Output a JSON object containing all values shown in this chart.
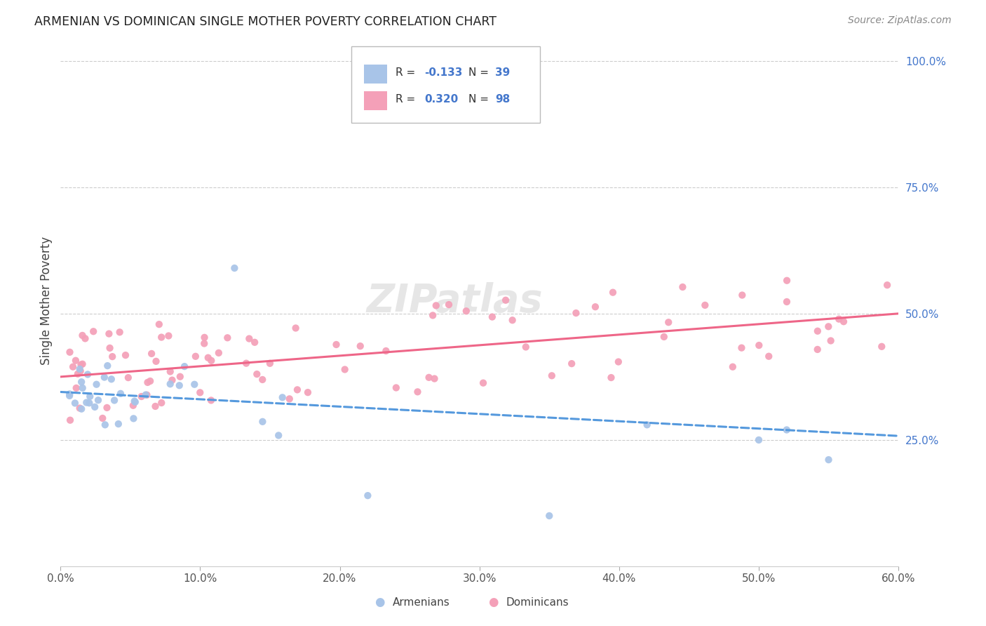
{
  "title": "ARMENIAN VS DOMINICAN SINGLE MOTHER POVERTY CORRELATION CHART",
  "source": "Source: ZipAtlas.com",
  "ylabel": "Single Mother Poverty",
  "armenian_R": -0.133,
  "armenian_N": 39,
  "dominican_R": 0.32,
  "dominican_N": 98,
  "armenian_color": "#a8c4e8",
  "dominican_color": "#f4a0b8",
  "armenian_line_color": "#5599dd",
  "dominican_line_color": "#ee6688",
  "watermark": "ZIPatlas",
  "legend_armenians": "Armenians",
  "legend_dominicans": "Dominicans",
  "text_color_blue": "#4477cc",
  "text_color_dark": "#333333",
  "xlim": [
    0.0,
    0.6
  ],
  "ylim": [
    0.0,
    1.05
  ],
  "arm_trend_start": 0.345,
  "arm_trend_end": 0.258,
  "dom_trend_start": 0.375,
  "dom_trend_end": 0.5
}
